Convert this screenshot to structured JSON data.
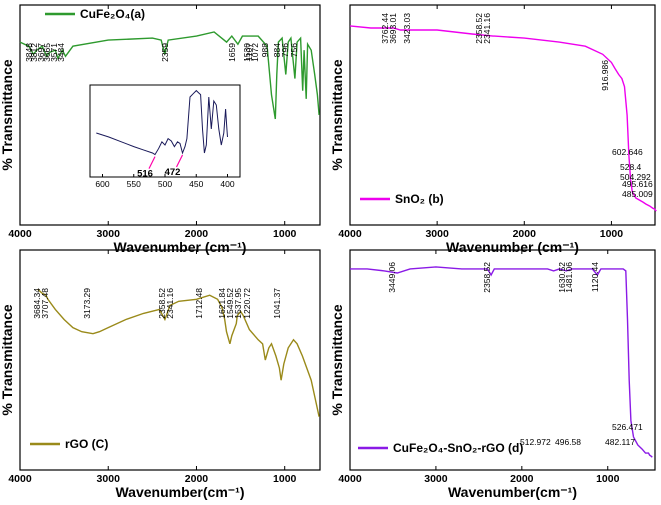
{
  "chart_data": [
    {
      "type": "line",
      "panel": "a",
      "legend": "CuFe₂O₄(a)",
      "color": "#2e9a2e",
      "xlabel": "Wavenumber (cm⁻¹)",
      "ylabel": "% Transmittance",
      "xlim": [
        4000,
        600
      ],
      "xticks": [
        4000,
        3000,
        2000,
        1000
      ],
      "points": [
        [
          4000,
          86
        ],
        [
          3900,
          84
        ],
        [
          3848,
          80
        ],
        [
          3812,
          82
        ],
        [
          3750,
          84
        ],
        [
          3697,
          79
        ],
        [
          3665,
          81
        ],
        [
          3600,
          82
        ],
        [
          3571,
          78
        ],
        [
          3520,
          82
        ],
        [
          3484,
          79
        ],
        [
          3400,
          84
        ],
        [
          3000,
          87
        ],
        [
          2500,
          88
        ],
        [
          2400,
          87
        ],
        [
          2359,
          80
        ],
        [
          2320,
          87
        ],
        [
          2000,
          89
        ],
        [
          1800,
          91
        ],
        [
          1659,
          86
        ],
        [
          1600,
          89
        ],
        [
          1530,
          85
        ],
        [
          1480,
          89
        ],
        [
          1300,
          89
        ],
        [
          1200,
          84
        ],
        [
          1150,
          60
        ],
        [
          1107,
          48
        ],
        [
          1090,
          70
        ],
        [
          1072,
          86
        ],
        [
          1030,
          88
        ],
        [
          988,
          70
        ],
        [
          960,
          86
        ],
        [
          930,
          88
        ],
        [
          884,
          68
        ],
        [
          860,
          86
        ],
        [
          820,
          88
        ],
        [
          796,
          62
        ],
        [
          780,
          82
        ],
        [
          756,
          58
        ],
        [
          740,
          85
        ],
        [
          700,
          82
        ],
        [
          660,
          70
        ],
        [
          630,
          60
        ],
        [
          610,
          50
        ]
      ],
      "peak_labels": [
        "3848",
        "3812",
        "3697",
        "3665",
        "3571",
        "3484",
        "2359",
        "1659",
        "1530",
        "1107",
        "1072",
        "988",
        "884",
        "796",
        "756"
      ],
      "peak_x": [
        3848,
        3812,
        3697,
        3665,
        3571,
        3484,
        2359,
        1659,
        1530,
        1107,
        1072,
        988,
        884,
        796,
        756
      ],
      "inset": {
        "xlim": [
          620,
          380
        ],
        "xticks": [
          600,
          550,
          500,
          450,
          400
        ],
        "points": [
          [
            610,
            55
          ],
          [
            590,
            50
          ],
          [
            570,
            44
          ],
          [
            550,
            38
          ],
          [
            535,
            34
          ],
          [
            520,
            30
          ],
          [
            516,
            28
          ],
          [
            510,
            36
          ],
          [
            505,
            44
          ],
          [
            500,
            40
          ],
          [
            495,
            48
          ],
          [
            490,
            45
          ],
          [
            485,
            38
          ],
          [
            480,
            44
          ],
          [
            476,
            42
          ],
          [
            472,
            30
          ],
          [
            468,
            38
          ],
          [
            465,
            48
          ],
          [
            460,
            100
          ],
          [
            455,
            104
          ],
          [
            450,
            108
          ],
          [
            446,
            105
          ],
          [
            443,
            103
          ],
          [
            440,
            60
          ],
          [
            437,
            30
          ],
          [
            434,
            40
          ],
          [
            430,
            100
          ],
          [
            426,
            60
          ],
          [
            422,
            95
          ],
          [
            418,
            90
          ],
          [
            414,
            60
          ],
          [
            410,
            40
          ],
          [
            406,
            55
          ],
          [
            403,
            85
          ],
          [
            401,
            60
          ],
          [
            400,
            50
          ]
        ],
        "annotations": [
          "516",
          "472"
        ]
      }
    },
    {
      "type": "line",
      "panel": "b",
      "legend": "SnO₂ (b)",
      "color": "#ee00ee",
      "xlabel": "Wavenumber (cm⁻¹)",
      "ylabel": "% Transmittance",
      "xlim": [
        4000,
        500
      ],
      "xticks": [
        4000,
        3000,
        2000,
        1000
      ],
      "points": [
        [
          4000,
          94
        ],
        [
          3762,
          93
        ],
        [
          3693,
          93
        ],
        [
          3500,
          93
        ],
        [
          3423,
          92
        ],
        [
          3000,
          92
        ],
        [
          2600,
          90
        ],
        [
          2358,
          89
        ],
        [
          2341,
          89
        ],
        [
          2000,
          88
        ],
        [
          1600,
          86
        ],
        [
          1300,
          84
        ],
        [
          1100,
          80
        ],
        [
          1000,
          76
        ],
        [
          960,
          73
        ],
        [
          917,
          70
        ],
        [
          880,
          68
        ],
        [
          850,
          64
        ],
        [
          820,
          50
        ],
        [
          800,
          30
        ],
        [
          780,
          18
        ],
        [
          760,
          12
        ],
        [
          720,
          9
        ],
        [
          680,
          8
        ],
        [
          640,
          7
        ],
        [
          603,
          6
        ],
        [
          560,
          5
        ],
        [
          528,
          4
        ],
        [
          504,
          3.5
        ],
        [
          495,
          3
        ],
        [
          485,
          2.5
        ]
      ],
      "peak_labels": [
        "3762.44",
        "3693.01",
        "3423.03",
        "2358.52",
        "2341.16",
        "916.986",
        "602.646",
        "528.4",
        "504.292",
        "495.616",
        "485.009"
      ]
    },
    {
      "type": "line",
      "panel": "c",
      "legend": "rGO (C)",
      "color": "#9a8a1a",
      "xlabel": "Wavenumber(cm⁻¹)",
      "ylabel": "% Transmittance",
      "xlim": [
        4000,
        600
      ],
      "xticks": [
        4000,
        3000,
        2000,
        1000
      ],
      "points": [
        [
          3800,
          85
        ],
        [
          3750,
          83
        ],
        [
          3707,
          82
        ],
        [
          3684,
          80
        ],
        [
          3600,
          75
        ],
        [
          3500,
          70
        ],
        [
          3400,
          66
        ],
        [
          3300,
          64
        ],
        [
          3173,
          63
        ],
        [
          3100,
          64
        ],
        [
          3000,
          66
        ],
        [
          2800,
          70
        ],
        [
          2600,
          73
        ],
        [
          2420,
          75
        ],
        [
          2358,
          70
        ],
        [
          2341,
          72
        ],
        [
          2300,
          77
        ],
        [
          2200,
          79
        ],
        [
          2000,
          80
        ],
        [
          1850,
          82
        ],
        [
          1760,
          80
        ],
        [
          1712,
          76
        ],
        [
          1680,
          70
        ],
        [
          1660,
          64
        ],
        [
          1621,
          58
        ],
        [
          1600,
          62
        ],
        [
          1549,
          68
        ],
        [
          1537,
          72
        ],
        [
          1500,
          74
        ],
        [
          1470,
          72
        ],
        [
          1400,
          65
        ],
        [
          1300,
          60
        ],
        [
          1250,
          58
        ],
        [
          1220,
          50
        ],
        [
          1180,
          56
        ],
        [
          1150,
          58
        ],
        [
          1100,
          52
        ],
        [
          1060,
          46
        ],
        [
          1041,
          40
        ],
        [
          1010,
          48
        ],
        [
          960,
          56
        ],
        [
          900,
          60
        ],
        [
          860,
          58
        ],
        [
          800,
          52
        ],
        [
          750,
          46
        ],
        [
          700,
          40
        ],
        [
          650,
          30
        ],
        [
          610,
          22
        ]
      ],
      "peak_labels": [
        "3707.48",
        "3684.34",
        "3173.29",
        "2358.52",
        "2341.16",
        "1712.48",
        "1621.84",
        "1549.52",
        "1537.95",
        "1220.72",
        "1041.37"
      ]
    },
    {
      "type": "line",
      "panel": "d",
      "legend": "CuFe₂O₄-SnO₂-rGO (d)",
      "color": "#8a1ae6",
      "xlabel": "Wavenumber(cm⁻¹)",
      "ylabel": "% Transmittance",
      "xlim": [
        4000,
        450
      ],
      "xticks": [
        4000,
        3000,
        2000,
        1000
      ],
      "points": [
        [
          4000,
          95
        ],
        [
          3800,
          95
        ],
        [
          3600,
          94
        ],
        [
          3449,
          93
        ],
        [
          3300,
          95
        ],
        [
          3000,
          96
        ],
        [
          2700,
          95
        ],
        [
          2400,
          95
        ],
        [
          2358,
          92
        ],
        [
          2320,
          95
        ],
        [
          2000,
          95
        ],
        [
          1700,
          95
        ],
        [
          1630,
          94
        ],
        [
          1560,
          95
        ],
        [
          1481,
          94
        ],
        [
          1420,
          95
        ],
        [
          1300,
          95
        ],
        [
          1180,
          95
        ],
        [
          1120,
          92
        ],
        [
          1080,
          95
        ],
        [
          900,
          95
        ],
        [
          820,
          95
        ],
        [
          790,
          94
        ],
        [
          770,
          70
        ],
        [
          750,
          40
        ],
        [
          730,
          20
        ],
        [
          700,
          12
        ],
        [
          650,
          8
        ],
        [
          600,
          6
        ],
        [
          560,
          4
        ],
        [
          526,
          4
        ],
        [
          513,
          3
        ],
        [
          496,
          2.5
        ],
        [
          482,
          2
        ]
      ],
      "peak_labels": [
        "3449.06",
        "2358.52",
        "1630.52",
        "1481.06",
        "1120.44",
        "526.471",
        "512.972",
        "496.58",
        "482.117"
      ]
    }
  ]
}
